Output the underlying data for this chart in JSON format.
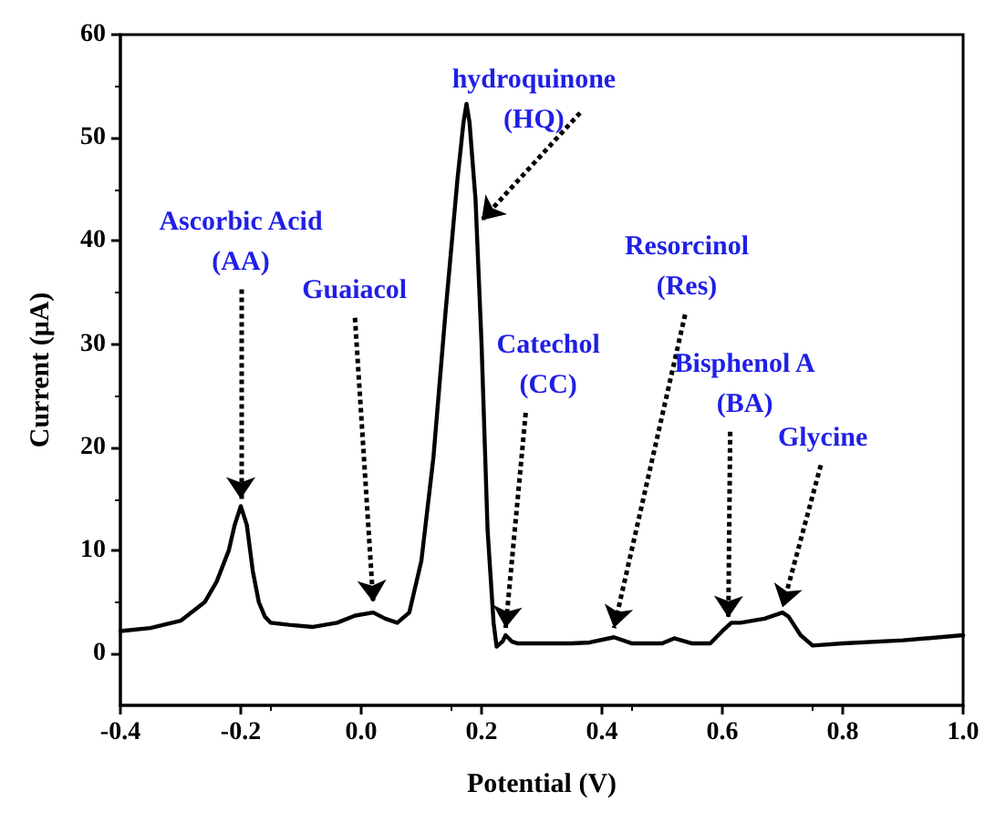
{
  "chart_data": {
    "type": "line",
    "xlabel": "Potential (V)",
    "ylabel": "Current (μA)",
    "xlim": [
      -0.4,
      1.0
    ],
    "ylim": [
      -5,
      60
    ],
    "xticks": [
      -0.4,
      -0.2,
      {
        "value": 0,
        "label": "0.0"
      },
      0.2,
      0.4,
      0.6,
      0.8,
      {
        "value": 1,
        "label": "1.0"
      }
    ],
    "yticks": [
      0,
      10,
      20,
      30,
      40,
      50,
      60
    ],
    "grid": false,
    "marker": "none",
    "line_style": "solid",
    "series": [
      {
        "color": "#000000",
        "x": [
          -0.4,
          -0.35,
          -0.3,
          -0.26,
          -0.24,
          -0.22,
          -0.21,
          -0.2,
          -0.19,
          -0.18,
          -0.17,
          -0.16,
          -0.15,
          -0.12,
          -0.08,
          -0.04,
          -0.01,
          0.02,
          0.04,
          0.06,
          0.08,
          0.1,
          0.12,
          0.14,
          0.16,
          0.17,
          0.175,
          0.18,
          0.19,
          0.2,
          0.21,
          0.22,
          0.225,
          0.235,
          0.24,
          0.25,
          0.26,
          0.3,
          0.35,
          0.38,
          0.42,
          0.45,
          0.5,
          0.52,
          0.55,
          0.58,
          0.6,
          0.615,
          0.63,
          0.67,
          0.7,
          0.71,
          0.73,
          0.75,
          0.8,
          0.9,
          1.0
        ],
        "values": [
          2.2,
          2.5,
          3.2,
          5,
          7,
          10,
          12.5,
          14.3,
          12.5,
          8,
          5,
          3.6,
          3,
          2.8,
          2.6,
          3,
          3.7,
          4,
          3.4,
          3,
          4,
          9,
          19,
          33,
          46,
          51.5,
          53.3,
          51.5,
          44,
          30,
          12,
          3,
          0.7,
          1.2,
          1.8,
          1.2,
          1,
          1,
          1,
          1.1,
          1.6,
          1,
          1,
          1.5,
          1,
          1,
          2.2,
          3,
          3,
          3.4,
          4,
          3.6,
          1.8,
          0.8,
          1,
          1.3,
          1.8
        ]
      }
    ],
    "annotations": [
      {
        "text": "Ascorbic Acid\n(AA)",
        "x": -0.2,
        "y": 15
      },
      {
        "text": "Guaiacol",
        "x": 0.02,
        "y": 5
      },
      {
        "text": "hydroquinone\n(HQ)",
        "x": 0.2,
        "y": 42
      },
      {
        "text": "Catechol\n(CC)",
        "x": 0.24,
        "y": 2.5
      },
      {
        "text": "Resorcinol\n(Res)",
        "x": 0.42,
        "y": 2.5
      },
      {
        "text": "Bisphenol A\n(BA)",
        "x": 0.61,
        "y": 3.5
      },
      {
        "text": "Glycine",
        "x": 0.7,
        "y": 4.5
      }
    ]
  }
}
